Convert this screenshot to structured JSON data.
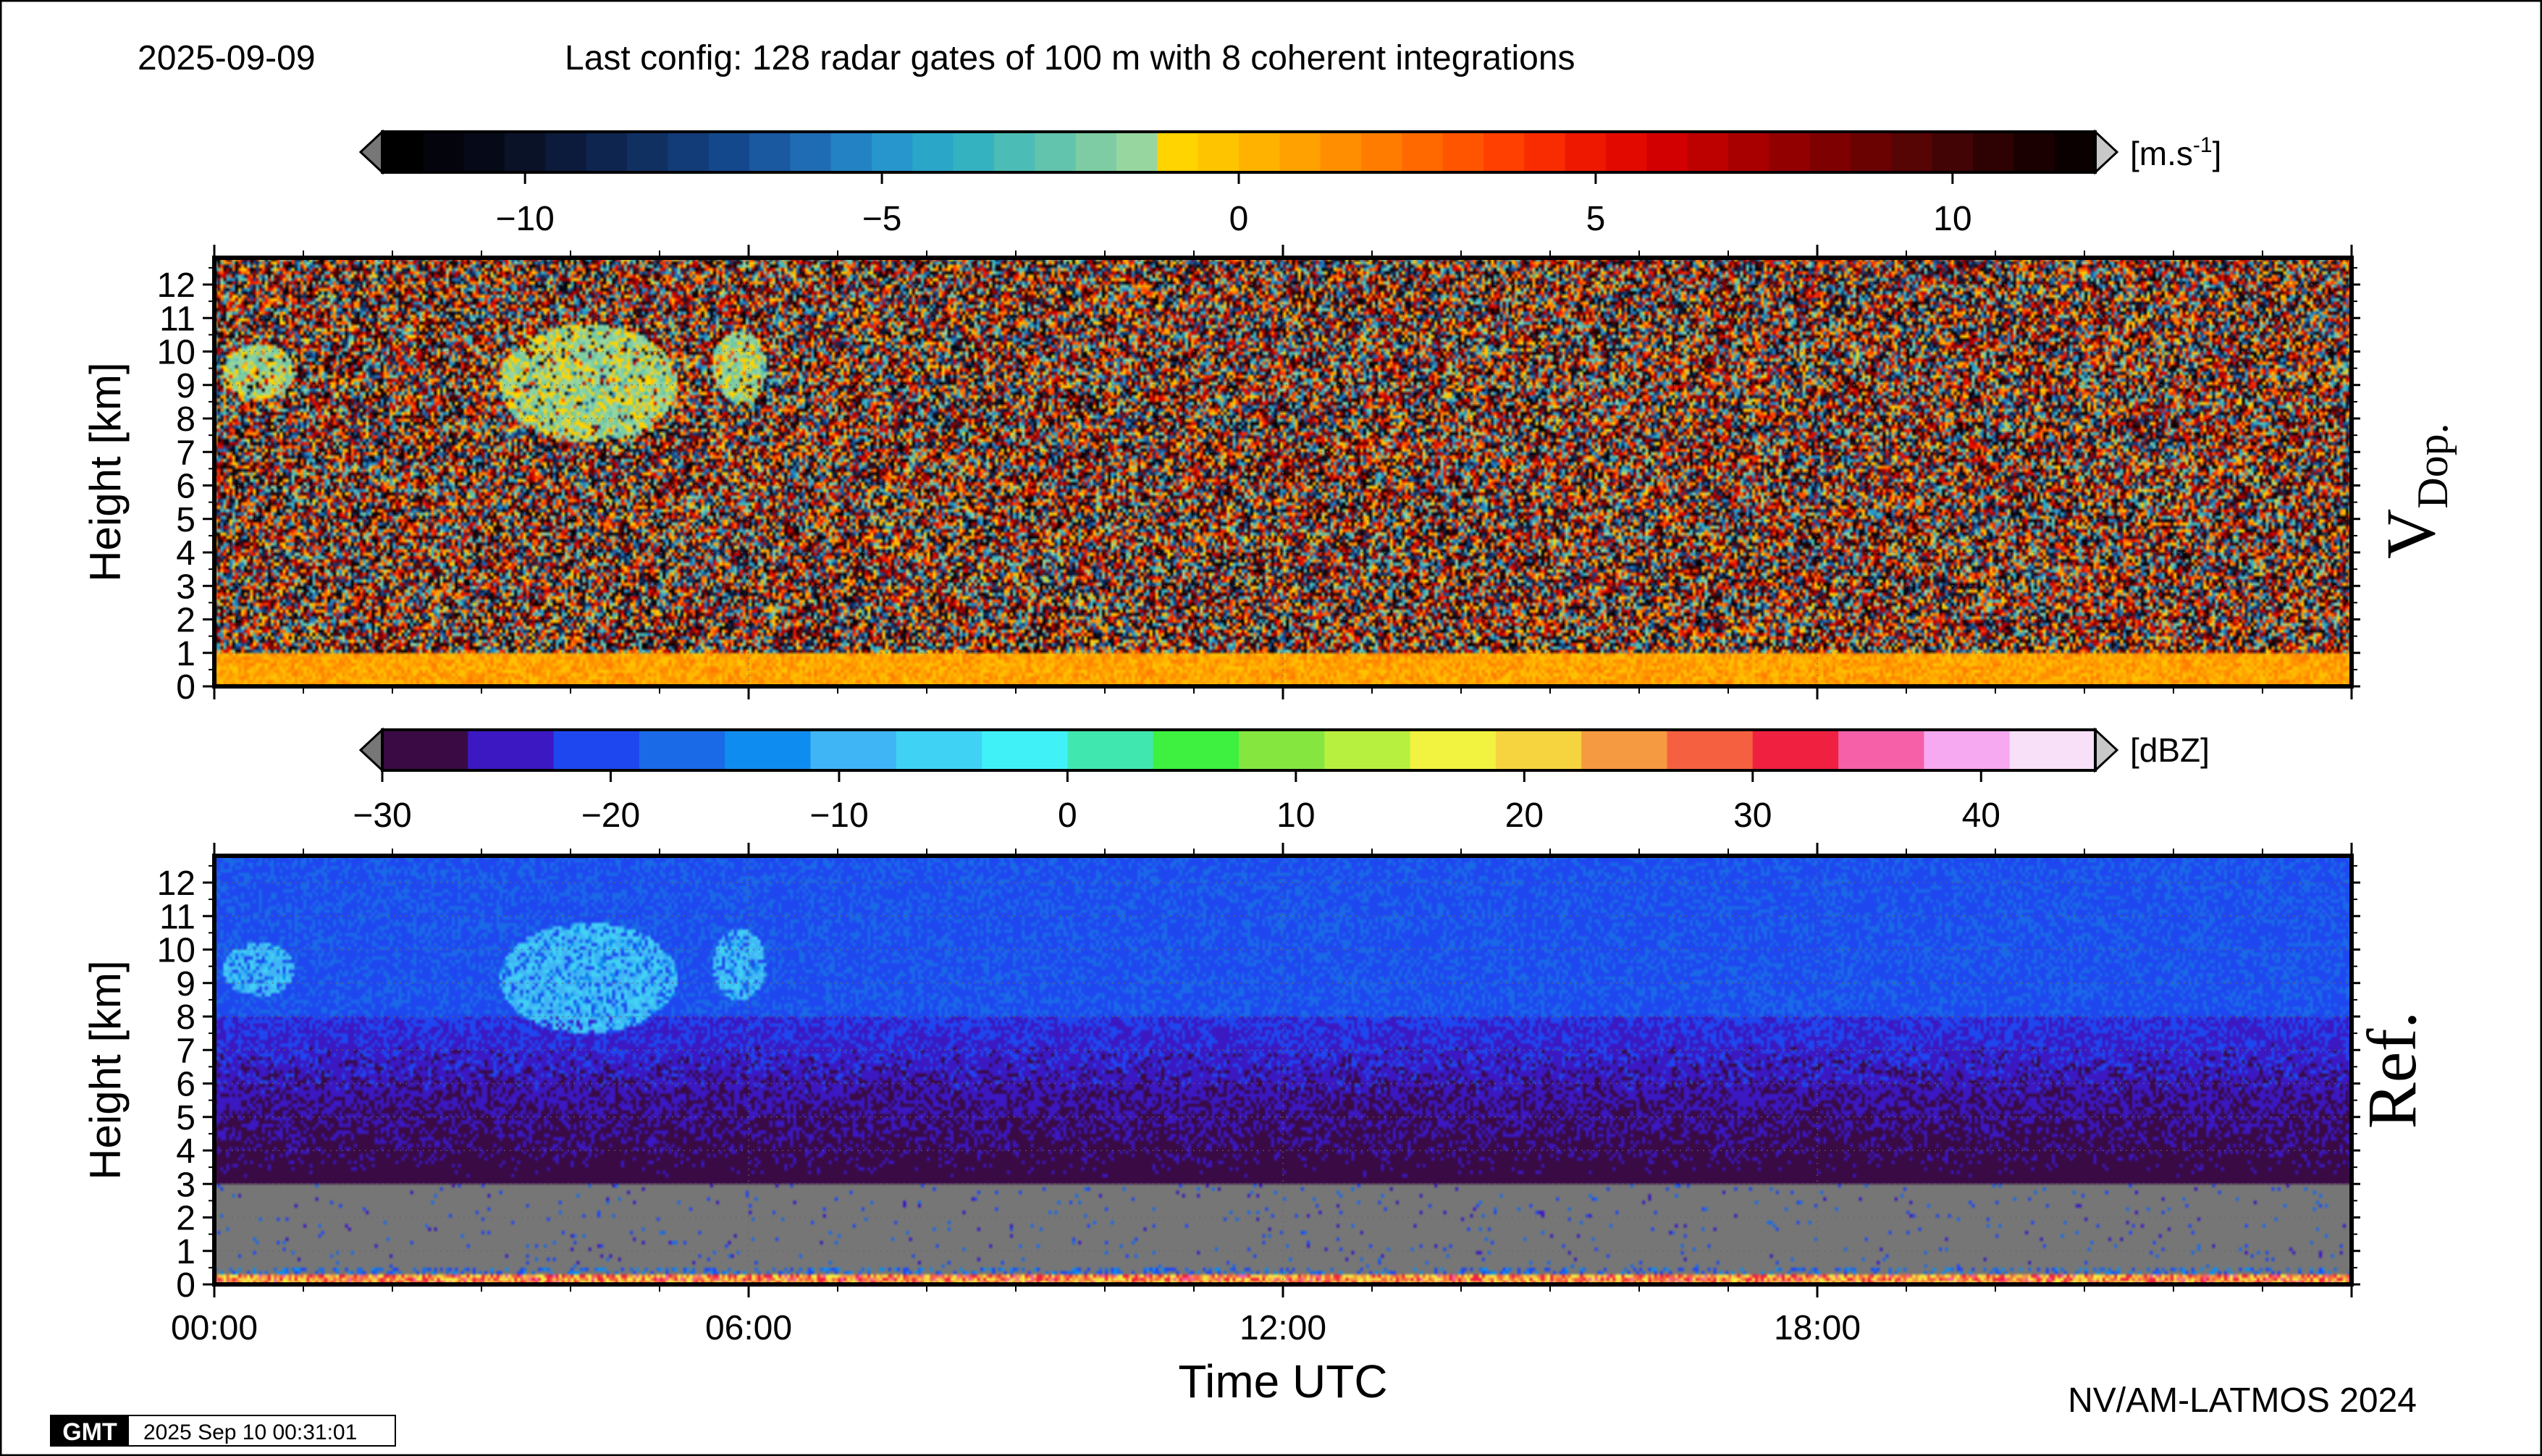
{
  "header": {
    "date": "2025-09-09",
    "config": "Last config: 128 radar gates of 100 m with 8 coherent integrations"
  },
  "footer": {
    "credit": "NV/AM-LATMOS 2024",
    "gmt_logo": "GMT",
    "timestamp": "2025 Sep 10 00:31:01"
  },
  "colorbars": [
    {
      "unit_prefix": "[m.s",
      "unit_exp": "-1",
      "unit_suffix": "]",
      "min": -12,
      "max": 12,
      "ticks": [
        -10,
        -5,
        0,
        5,
        10
      ],
      "tick_labels": [
        "−10",
        "−5",
        "0",
        "5",
        "10"
      ],
      "colors": [
        "#000000",
        "#03040c",
        "#060a18",
        "#0a1228",
        "#0c1b3c",
        "#0e2550",
        "#103062",
        "#123c77",
        "#14488c",
        "#1a58a0",
        "#1f6cb4",
        "#2382c4",
        "#2696cc",
        "#2aa6c8",
        "#35b2c0",
        "#4cbcb6",
        "#62c4ac",
        "#7ecca4",
        "#98d6a0",
        "#ffd400",
        "#ffc400",
        "#ffb300",
        "#ffa100",
        "#ff8f00",
        "#ff7c00",
        "#ff6900",
        "#ff5500",
        "#ff4000",
        "#f82c00",
        "#ee1800",
        "#e20a00",
        "#d20000",
        "#bd0000",
        "#a80000",
        "#930000",
        "#7e0000",
        "#6a0202",
        "#560404",
        "#420404",
        "#2e0202",
        "#1a0000",
        "#0b0000"
      ]
    },
    {
      "unit_prefix": "[dBZ]",
      "unit_exp": "",
      "unit_suffix": "",
      "min": -30,
      "max": 45,
      "ticks": [
        -30,
        -20,
        -10,
        0,
        10,
        20,
        30,
        40
      ],
      "tick_labels": [
        "−30",
        "−20",
        "−10",
        "0",
        "10",
        "20",
        "30",
        "40"
      ],
      "colors": [
        "#3a0a45",
        "#3b18c2",
        "#1f47f0",
        "#1a6ae8",
        "#0f8cf0",
        "#40b5f5",
        "#40d2f5",
        "#40f2f8",
        "#40e8b0",
        "#3ef040",
        "#86e640",
        "#b8f040",
        "#f2f240",
        "#f6d440",
        "#f59a40",
        "#f56040",
        "#f02040",
        "#f560a8",
        "#f6a8f0",
        "#f8e0f8"
      ]
    }
  ],
  "chart_data": [
    {
      "type": "heatmap",
      "panel_label": "V",
      "panel_label_sub": "Dop.",
      "variable": "Doppler velocity",
      "unit": "m.s-1",
      "color_range": [
        -12,
        12
      ],
      "xlabel": "",
      "ylabel": "Height [km]",
      "xlim": [
        0,
        24
      ],
      "ylim": [
        0,
        12.8
      ],
      "yticks": [
        0,
        1,
        2,
        3,
        4,
        5,
        6,
        7,
        8,
        9,
        10,
        11,
        12
      ],
      "x_ticks_hours": [
        0,
        6,
        12,
        18
      ],
      "grid": true,
      "features": [
        {
          "time_h": [
            0,
            24
          ],
          "height_km": [
            0,
            1.0
          ],
          "value_ms": [
            -0.5,
            2
          ],
          "note": "boundary layer near-zero velocity"
        },
        {
          "time_h": [
            0.1,
            0.9
          ],
          "height_km": [
            8.6,
            10.2
          ],
          "value_ms": [
            -2.5,
            -0.5
          ],
          "note": "cirrus"
        },
        {
          "time_h": [
            3.2,
            5.2
          ],
          "height_km": [
            7.3,
            10.8
          ],
          "value_ms": [
            -2.5,
            -0.5
          ],
          "note": "cirrus fall streaks"
        },
        {
          "time_h": [
            5.6,
            6.2
          ],
          "height_km": [
            8.5,
            10.6
          ],
          "value_ms": [
            -2.5,
            -0.5
          ],
          "note": "cirrus"
        }
      ],
      "background": "random noise spanning full velocity range"
    },
    {
      "type": "heatmap",
      "panel_label": "Ref.",
      "variable": "Reflectivity",
      "unit": "dBZ",
      "color_range": [
        -30,
        45
      ],
      "xlabel": "Time UTC",
      "ylabel": "Height [km]",
      "xlim": [
        0,
        24
      ],
      "ylim": [
        0,
        12.8
      ],
      "yticks": [
        0,
        1,
        2,
        3,
        4,
        5,
        6,
        7,
        8,
        9,
        10,
        11,
        12
      ],
      "xticks": [
        0,
        6,
        12,
        18
      ],
      "xtick_labels": [
        "00:00",
        "06:00",
        "12:00",
        "18:00"
      ],
      "grid": true,
      "features": [
        {
          "height_km": [
            8,
            12.8
          ],
          "value_dbz": [
            -22,
            -17
          ],
          "note": "noise floor upper range"
        },
        {
          "height_km": [
            4,
            8
          ],
          "value_dbz": [
            -28,
            -22
          ],
          "note": "noise floor mid range"
        },
        {
          "height_km": [
            0.5,
            3.0
          ],
          "value": "no data (grey)"
        },
        {
          "height_km": [
            0,
            0.3
          ],
          "value_dbz": [
            15,
            35
          ],
          "note": "surface echo band"
        },
        {
          "time_h": [
            0.1,
            0.9
          ],
          "height_km": [
            8.6,
            10.2
          ],
          "value_dbz": [
            -12,
            -5
          ],
          "note": "cirrus"
        },
        {
          "time_h": [
            3.2,
            5.2
          ],
          "height_km": [
            7.5,
            10.8
          ],
          "value_dbz": [
            -12,
            -5
          ],
          "note": "cirrus fall streaks"
        },
        {
          "time_h": [
            5.6,
            6.2
          ],
          "height_km": [
            8.5,
            10.6
          ],
          "value_dbz": [
            -12,
            -5
          ],
          "note": "cirrus"
        }
      ]
    }
  ]
}
